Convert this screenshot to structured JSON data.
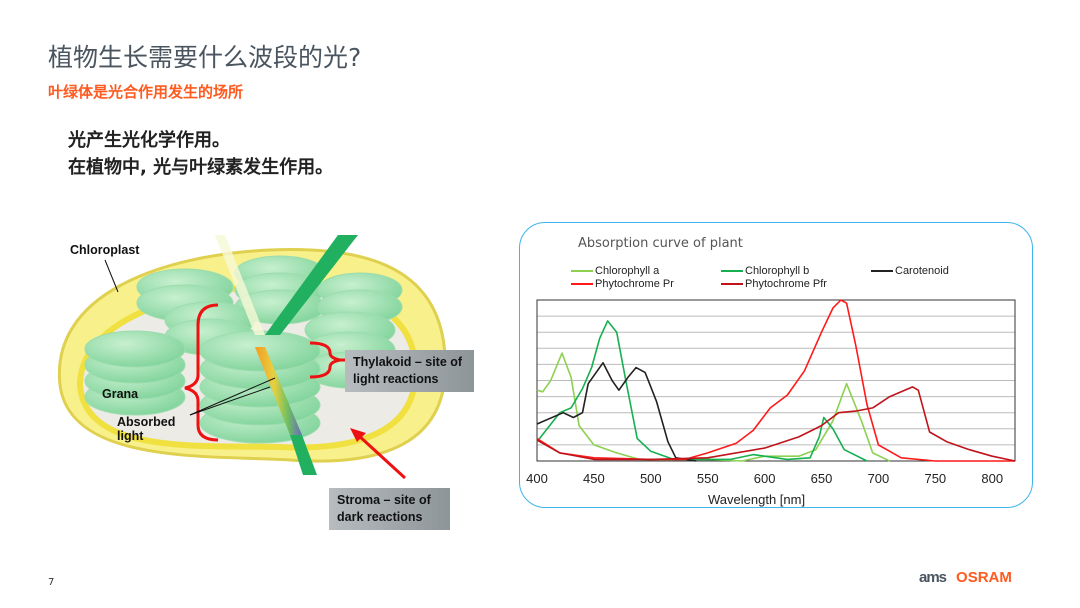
{
  "slide": {
    "title": "植物生长需要什么波段的光?",
    "subtitle": "叶绿体是光合作用发生的场所",
    "body": [
      "光产生光化学作用。",
      "在植物中, 光与叶绿素发生作用。"
    ],
    "page_number": "7",
    "logo": {
      "ams": "ams",
      "osram": "OSRAM"
    },
    "accent_color": "#ff5a1f",
    "title_color": "#4a5560"
  },
  "diagram": {
    "labels": {
      "chloroplast": "Chloroplast",
      "grana": "Grana",
      "absorbed_light": "Absorbed light",
      "thylakoid": "Thylakoid – site of light reactions",
      "stroma": "Stroma – site of dark reactions"
    }
  },
  "chart_data": {
    "type": "line",
    "title": "Absorption curve of plant",
    "xlabel": "Wavelength [nm]",
    "ylabel": "",
    "xlim": [
      400,
      820
    ],
    "ylim": [
      0,
      1
    ],
    "xticks": [
      400,
      450,
      500,
      550,
      600,
      650,
      700,
      750,
      800
    ],
    "grid": "horizontal",
    "legend_position": "top",
    "series": [
      {
        "name": "Chlorophyll a",
        "color": "#8cd14f",
        "points": [
          [
            400,
            0.44
          ],
          [
            405,
            0.43
          ],
          [
            412,
            0.5
          ],
          [
            422,
            0.67
          ],
          [
            430,
            0.52
          ],
          [
            437,
            0.22
          ],
          [
            450,
            0.1
          ],
          [
            470,
            0.05
          ],
          [
            490,
            0.01
          ],
          [
            550,
            0.01
          ],
          [
            580,
            0.0
          ],
          [
            600,
            0.03
          ],
          [
            630,
            0.03
          ],
          [
            645,
            0.07
          ],
          [
            660,
            0.25
          ],
          [
            672,
            0.48
          ],
          [
            685,
            0.25
          ],
          [
            695,
            0.05
          ],
          [
            710,
            0.0
          ]
        ]
      },
      {
        "name": "Chlorophyll b",
        "color": "#16b050",
        "points": [
          [
            400,
            0.12
          ],
          [
            420,
            0.3
          ],
          [
            430,
            0.33
          ],
          [
            440,
            0.45
          ],
          [
            448,
            0.58
          ],
          [
            455,
            0.76
          ],
          [
            462,
            0.87
          ],
          [
            470,
            0.8
          ],
          [
            478,
            0.5
          ],
          [
            488,
            0.14
          ],
          [
            500,
            0.06
          ],
          [
            520,
            0.01
          ],
          [
            570,
            0.01
          ],
          [
            590,
            0.04
          ],
          [
            620,
            0.01
          ],
          [
            640,
            0.02
          ],
          [
            648,
            0.15
          ],
          [
            652,
            0.27
          ],
          [
            660,
            0.2
          ],
          [
            670,
            0.07
          ],
          [
            690,
            0.0
          ]
        ]
      },
      {
        "name": "Carotenoid",
        "color": "#222222",
        "points": [
          [
            400,
            0.23
          ],
          [
            423,
            0.3
          ],
          [
            432,
            0.27
          ],
          [
            440,
            0.3
          ],
          [
            445,
            0.48
          ],
          [
            458,
            0.61
          ],
          [
            466,
            0.5
          ],
          [
            472,
            0.44
          ],
          [
            480,
            0.52
          ],
          [
            487,
            0.58
          ],
          [
            495,
            0.55
          ],
          [
            505,
            0.37
          ],
          [
            515,
            0.12
          ],
          [
            522,
            0.02
          ],
          [
            540,
            0.0
          ]
        ]
      },
      {
        "name": "Phytochrome Pr",
        "color": "#ff1a1a",
        "points": [
          [
            400,
            0.14
          ],
          [
            420,
            0.05
          ],
          [
            450,
            0.02
          ],
          [
            500,
            0.01
          ],
          [
            530,
            0.01
          ],
          [
            550,
            0.05
          ],
          [
            575,
            0.11
          ],
          [
            590,
            0.19
          ],
          [
            605,
            0.33
          ],
          [
            620,
            0.41
          ],
          [
            635,
            0.56
          ],
          [
            650,
            0.8
          ],
          [
            660,
            0.95
          ],
          [
            667,
            1.0
          ],
          [
            672,
            0.98
          ],
          [
            680,
            0.72
          ],
          [
            690,
            0.35
          ],
          [
            700,
            0.1
          ],
          [
            720,
            0.02
          ],
          [
            750,
            0.0
          ],
          [
            820,
            0.0
          ]
        ]
      },
      {
        "name": "Phytochrome Pfr",
        "color": "#c0141a",
        "points": [
          [
            400,
            0.13
          ],
          [
            420,
            0.05
          ],
          [
            450,
            0.01
          ],
          [
            500,
            0.01
          ],
          [
            550,
            0.02
          ],
          [
            600,
            0.08
          ],
          [
            630,
            0.15
          ],
          [
            650,
            0.22
          ],
          [
            665,
            0.3
          ],
          [
            680,
            0.31
          ],
          [
            695,
            0.33
          ],
          [
            710,
            0.4
          ],
          [
            730,
            0.46
          ],
          [
            735,
            0.44
          ],
          [
            745,
            0.18
          ],
          [
            760,
            0.12
          ],
          [
            780,
            0.07
          ],
          [
            800,
            0.03
          ],
          [
            820,
            0.0
          ]
        ]
      }
    ]
  }
}
